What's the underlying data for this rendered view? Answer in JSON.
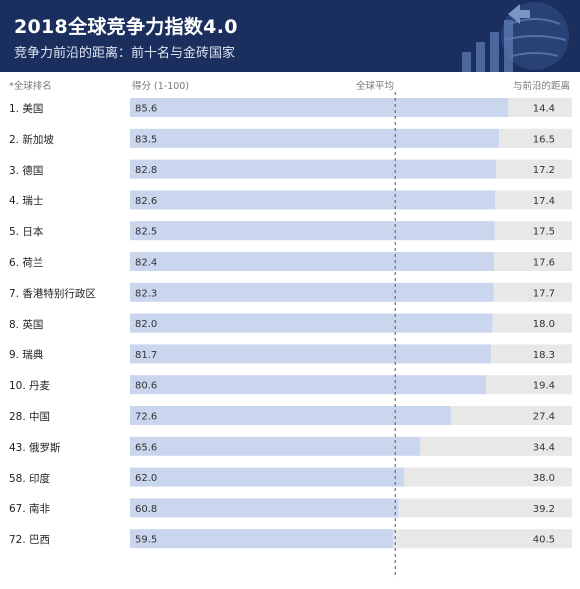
{
  "header": {
    "title": "2018全球竞争力指数4.0",
    "subtitle": "竞争力前沿的距离：前十名与金砖国家"
  },
  "columns": {
    "rank_label": "*全球排名",
    "score_label": "得分 (1-100)",
    "average_label": "全球平均",
    "gap_label": "与前沿的距离"
  },
  "colors": {
    "header_bg": "#1b2f5e",
    "score_bar": "#c9d6ee",
    "gap_bar": "#e8e8e8",
    "average_line": "#555555"
  },
  "chart_data": {
    "type": "bar",
    "orientation": "horizontal",
    "stacked": true,
    "categories": [
      "1. 美国",
      "2. 新加坡",
      "3. 德国",
      "4. 瑞士",
      "5. 日本",
      "6. 荷兰",
      "7. 香港特别行政区",
      "8. 英国",
      "9. 瑞典",
      "10. 丹麦",
      "28. 中国",
      "43. 俄罗斯",
      "58. 印度",
      "67. 南非",
      "72. 巴西"
    ],
    "series": [
      {
        "name": "得分 (1-100)",
        "values": [
          85.6,
          83.5,
          82.8,
          82.6,
          82.5,
          82.4,
          82.3,
          82.0,
          81.7,
          80.6,
          72.6,
          65.6,
          62.0,
          60.8,
          59.5
        ]
      },
      {
        "name": "与前沿的距离",
        "values": [
          14.4,
          16.5,
          17.2,
          17.4,
          17.5,
          17.6,
          17.7,
          18.0,
          18.3,
          19.4,
          27.4,
          34.4,
          38.0,
          39.2,
          40.5
        ]
      }
    ],
    "value_labels": {
      "score": [
        "85.6",
        "83.5",
        "82.8",
        "82.6",
        "82.5",
        "82.4",
        "82.3",
        "82.0",
        "81.7",
        "80.6",
        "72.6",
        "65.6",
        "62.0",
        "60.8",
        "59.5"
      ],
      "gap": [
        "14.4",
        "16.5",
        "17.2",
        "17.4",
        "17.5",
        "17.6",
        "17.7",
        "18.0",
        "18.3",
        "19.4",
        "27.4",
        "34.4",
        "38.0",
        "39.2",
        "40.5"
      ]
    },
    "reference_line": {
      "label": "全球平均",
      "value": 60.0
    },
    "xlim": [
      0,
      100
    ],
    "grid": false,
    "legend": "none"
  }
}
